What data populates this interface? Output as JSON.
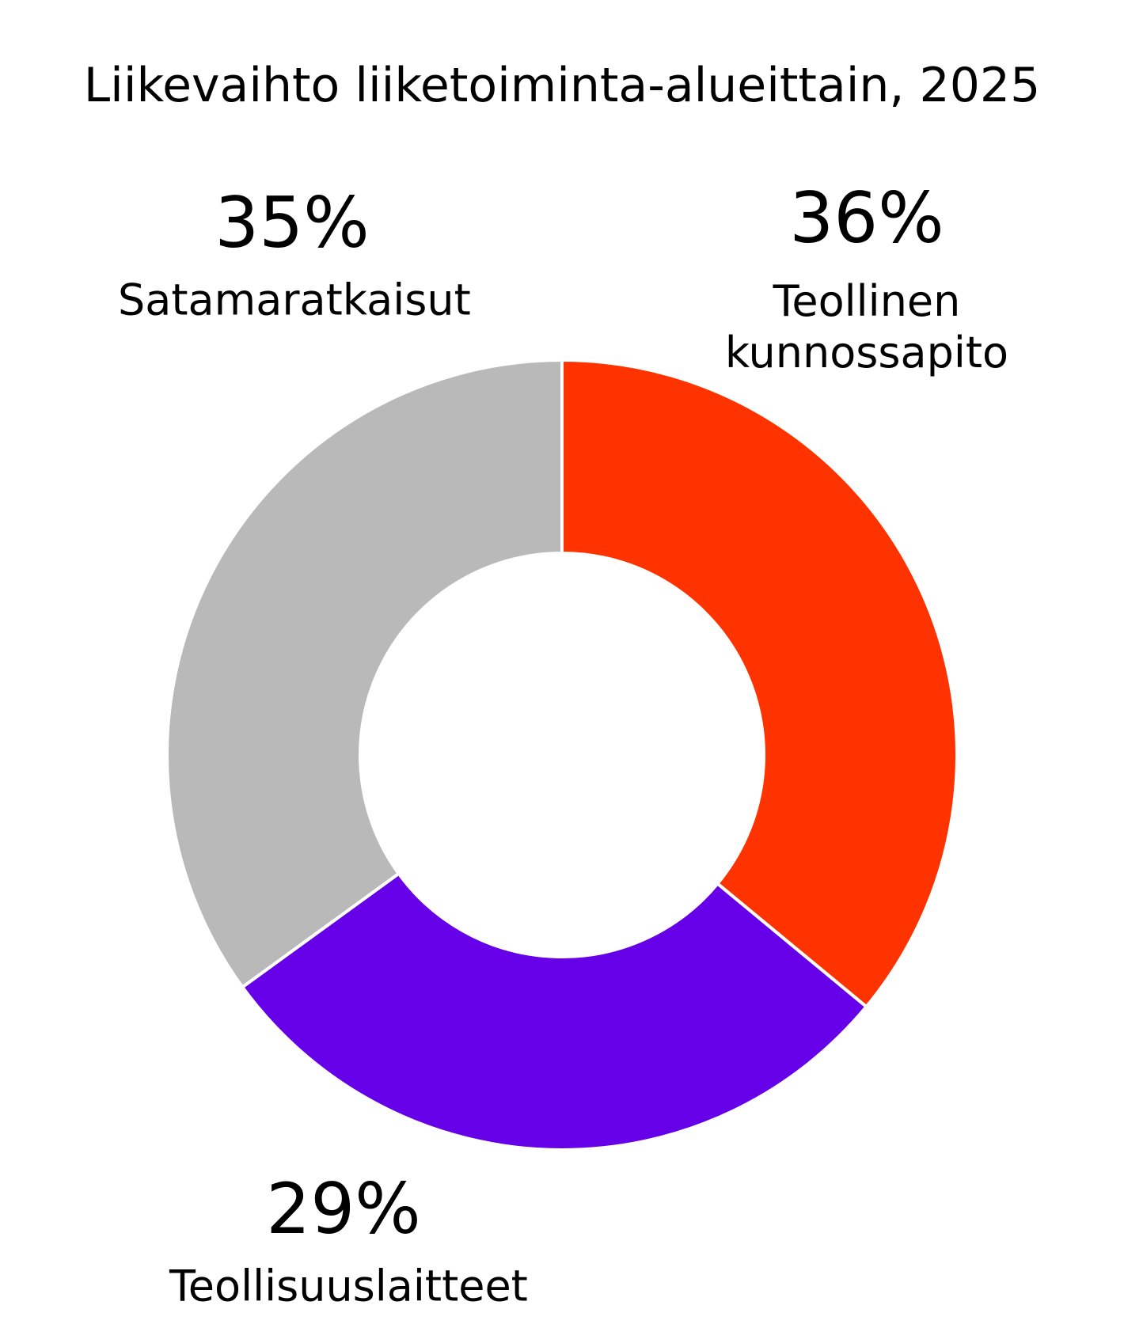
{
  "chart_data": {
    "type": "pie",
    "title": "Liikevaihto liiketoiminta-alueittain, 2025",
    "categories": [
      "Teollinen kunnossapito",
      "Teollisuuslaitteet",
      "Satamaratkaisut"
    ],
    "values": [
      36,
      29,
      35
    ],
    "value_labels": [
      "36%",
      "29%",
      "35%"
    ],
    "colors": [
      "#ff3300",
      "#6600e8",
      "#b9b9b9"
    ]
  }
}
